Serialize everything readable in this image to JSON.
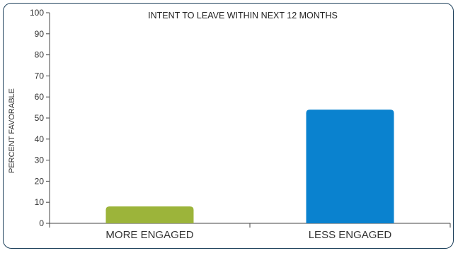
{
  "chart_data": {
    "type": "bar",
    "title": "INTENT TO LEAVE WITHIN NEXT 12 MONTHS",
    "ylabel": "PERCENT FAVORABLE",
    "xlabel": "",
    "categories": [
      "MORE ENGAGED",
      "LESS ENGAGED"
    ],
    "values": [
      8,
      54
    ],
    "colors": [
      "#9cb43a",
      "#0a82cf"
    ],
    "ylim": [
      0,
      100
    ],
    "yticks": [
      "0",
      "10",
      "20",
      "30",
      "40",
      "50",
      "60",
      "70",
      "80",
      "90",
      "100"
    ],
    "grid": false,
    "legend": "none"
  }
}
